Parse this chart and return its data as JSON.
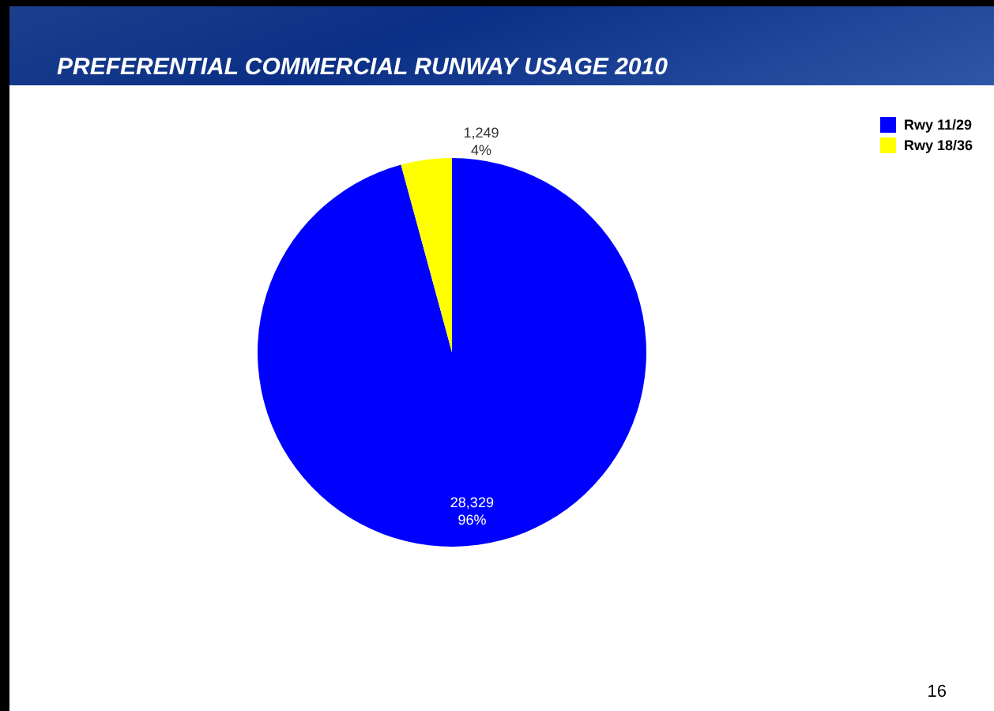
{
  "chart_data": {
    "type": "pie",
    "title": "PREFERENTIAL COMMERCIAL  RUNWAY USAGE  2010",
    "categories": [
      "Rwy 11/29",
      "Rwy 18/36"
    ],
    "values": [
      28329,
      1249
    ],
    "colors": [
      "#0000ff",
      "#ffff00"
    ],
    "value_labels": [
      "28,329\n96%",
      "1,249\n4%"
    ],
    "legend": "right",
    "annotations": [
      "16"
    ]
  }
}
